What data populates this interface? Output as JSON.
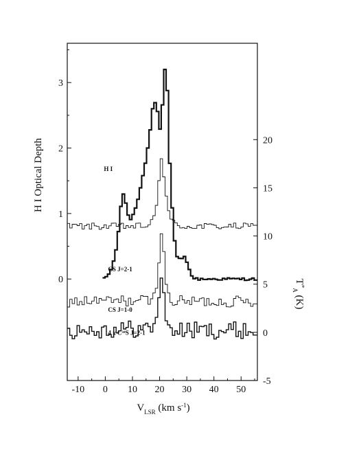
{
  "chart_data": {
    "type": "line",
    "x": {
      "label": "V_LSR (km s⁻¹)",
      "label_main": "V",
      "label_sub": "LSR",
      "label_unit": " (km s",
      "label_sup": "-1",
      "label_close": ")",
      "lim": [
        -14,
        56
      ],
      "ticks": [
        -10,
        0,
        10,
        20,
        30,
        40,
        50
      ]
    },
    "y_left": {
      "label": "H I Optical Depth",
      "lim": [
        -1.55,
        3.6
      ],
      "ticks": [
        0,
        1,
        2,
        3
      ]
    },
    "y_right": {
      "label": "T*A (K)",
      "label_main": "T",
      "label_sup": "*",
      "label_sub": "A",
      "label_unit": " (K)",
      "lim": [
        -5,
        30
      ],
      "ticks": [
        -5,
        0,
        5,
        10,
        15,
        20
      ]
    },
    "annotations": [
      {
        "text": "H I",
        "x": -0.5,
        "y_left": 1.65
      },
      {
        "text": "CS J=2-1",
        "x": 1,
        "y_left": 0.12
      },
      {
        "text": "CS J=1-0",
        "x": 1,
        "y_left": -0.5
      },
      {
        "text": "4 x C³⁴S J=2-1",
        "x": 1,
        "y_left": -0.85
      }
    ],
    "series": [
      {
        "name": "H I",
        "style": "bold-step",
        "axis": "left",
        "baseline": 0,
        "noise": 0.02,
        "range": [
          -1,
          55
        ],
        "points": [
          [
            -1,
            0
          ],
          [
            0,
            0.04
          ],
          [
            1,
            0.08
          ],
          [
            2,
            0.18
          ],
          [
            3,
            0.33
          ],
          [
            4,
            0.55
          ],
          [
            5,
            1.0
          ],
          [
            6,
            1.33
          ],
          [
            7,
            1.18
          ],
          [
            8,
            0.98
          ],
          [
            9,
            0.9
          ],
          [
            10,
            1.0
          ],
          [
            11,
            1.13
          ],
          [
            12,
            1.28
          ],
          [
            13,
            1.5
          ],
          [
            14,
            1.7
          ],
          [
            15,
            1.95
          ],
          [
            16,
            2.25
          ],
          [
            17,
            2.6
          ],
          [
            18,
            2.7
          ],
          [
            19,
            2.52
          ],
          [
            20,
            2.2
          ],
          [
            21,
            2.95
          ],
          [
            22,
            3.45
          ],
          [
            23,
            2.0
          ],
          [
            24,
            1.2
          ],
          [
            25,
            0.6
          ],
          [
            26,
            0.35
          ],
          [
            27,
            0.3
          ],
          [
            28,
            0.3
          ],
          [
            29,
            0.38
          ],
          [
            30,
            0.2
          ],
          [
            31,
            0.07
          ],
          [
            32,
            0.02
          ],
          [
            33,
            0
          ],
          [
            55,
            0
          ]
        ]
      },
      {
        "name": "CS J=2-1",
        "style": "thin-step",
        "axis": "right",
        "baseline": 11,
        "noise": 0.35,
        "range": [
          -14,
          55
        ],
        "points": [
          [
            -14,
            11
          ],
          [
            14,
            11
          ],
          [
            16,
            11.3
          ],
          [
            18,
            12.2
          ],
          [
            19,
            14.5
          ],
          [
            20,
            18.5
          ],
          [
            21,
            16.5
          ],
          [
            22,
            14.2
          ],
          [
            23,
            12.4
          ],
          [
            24,
            11.5
          ],
          [
            26,
            11.1
          ],
          [
            28,
            11
          ],
          [
            55,
            11
          ]
        ]
      },
      {
        "name": "CS J=1-0",
        "style": "thin-step",
        "axis": "right",
        "baseline": 3.2,
        "noise": 0.6,
        "range": [
          -14,
          55
        ],
        "points": [
          [
            -14,
            3.2
          ],
          [
            17,
            3.3
          ],
          [
            18,
            4.0
          ],
          [
            19,
            6.0
          ],
          [
            20,
            11.0
          ],
          [
            21,
            8.5
          ],
          [
            22,
            5.0
          ],
          [
            23,
            3.8
          ],
          [
            24,
            3.3
          ],
          [
            25,
            3.2
          ],
          [
            55,
            3.2
          ]
        ]
      },
      {
        "name": "4 x C³⁴S J=2-1",
        "style": "medium-step",
        "axis": "right",
        "baseline": 0.2,
        "noise": 0.9,
        "range": [
          -14,
          55
        ],
        "points": [
          [
            -14,
            0.2
          ],
          [
            17,
            0.4
          ],
          [
            18,
            1.0
          ],
          [
            19,
            2.8
          ],
          [
            20,
            6.2
          ],
          [
            21,
            4.0
          ],
          [
            22,
            1.5
          ],
          [
            23,
            0.6
          ],
          [
            24,
            0.2
          ],
          [
            55,
            0.2
          ]
        ]
      }
    ]
  }
}
